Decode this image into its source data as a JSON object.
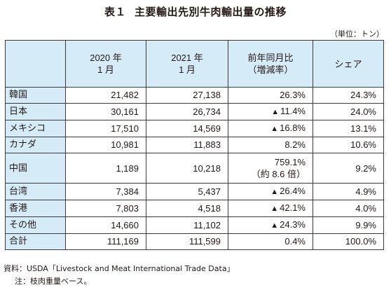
{
  "title": {
    "number": "表１",
    "text": "主要輸出先別牛肉輸出量の推移"
  },
  "unit": "（単位：トン）",
  "headers": {
    "h2020": [
      "2020 年",
      "1 月"
    ],
    "h2021": [
      "2021 年",
      "1 月"
    ],
    "yoy": [
      "前年同月比",
      "（増減率）"
    ],
    "share": "シェア"
  },
  "decrease_marker": "▲",
  "rows": [
    {
      "name": "韓国",
      "v2020": "21,482",
      "v2021": "27,138",
      "yoy": "26.3%",
      "yoy_decrease": false,
      "share": "24.3%"
    },
    {
      "name": "日本",
      "v2020": "30,161",
      "v2021": "26,734",
      "yoy": "11.4%",
      "yoy_decrease": true,
      "share": "24.0%"
    },
    {
      "name": "メキシコ",
      "v2020": "17,510",
      "v2021": "14,569",
      "yoy": "16.8%",
      "yoy_decrease": true,
      "share": "13.1%"
    },
    {
      "name": "カナダ",
      "v2020": "10,981",
      "v2021": "11,883",
      "yoy": "8.2%",
      "yoy_decrease": false,
      "share": "10.6%"
    },
    {
      "name": "中国",
      "v2020": "1,189",
      "v2021": "10,218",
      "yoy": "759.1%",
      "yoy_sub": "（約 8.6 倍）",
      "yoy_decrease": false,
      "share": "9.2%"
    },
    {
      "name": "台湾",
      "v2020": "7,384",
      "v2021": "5,437",
      "yoy": "26.4%",
      "yoy_decrease": true,
      "share": "4.9%"
    },
    {
      "name": "香港",
      "v2020": "7,803",
      "v2021": "4,518",
      "yoy": "42.1%",
      "yoy_decrease": true,
      "share": "4.0%"
    },
    {
      "name": "その他",
      "v2020": "14,660",
      "v2021": "11,102",
      "yoy": "24.3%",
      "yoy_decrease": true,
      "share": "9.9%"
    }
  ],
  "total": {
    "name": "合計",
    "v2020": "111,169",
    "v2021": "111,599",
    "yoy": "0.4%",
    "share": "100.0%"
  },
  "notes": {
    "source": "資料：USDA「Livestock and Meat International Trade Data」",
    "note": "注：枝肉重量ベース。"
  }
}
